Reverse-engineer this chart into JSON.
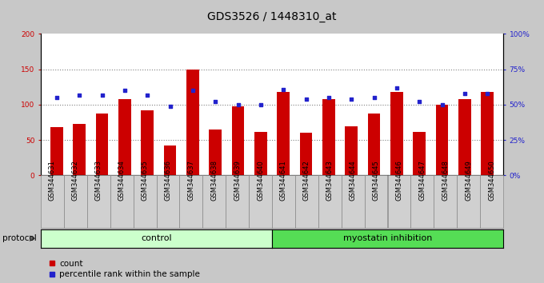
{
  "title": "GDS3526 / 1448310_at",
  "samples": [
    "GSM344631",
    "GSM344632",
    "GSM344633",
    "GSM344634",
    "GSM344635",
    "GSM344636",
    "GSM344637",
    "GSM344638",
    "GSM344639",
    "GSM344640",
    "GSM344641",
    "GSM344642",
    "GSM344643",
    "GSM344644",
    "GSM344645",
    "GSM344646",
    "GSM344647",
    "GSM344648",
    "GSM344649",
    "GSM344650"
  ],
  "bar_values": [
    68,
    73,
    88,
    108,
    92,
    42,
    150,
    65,
    98,
    62,
    118,
    60,
    108,
    70,
    88,
    118,
    62,
    100,
    108,
    118
  ],
  "dot_values": [
    55,
    57,
    57,
    60,
    57,
    49,
    60,
    52,
    50,
    50,
    61,
    54,
    55,
    54,
    55,
    62,
    52,
    50,
    58,
    58
  ],
  "bar_color": "#cc0000",
  "dot_color": "#2222cc",
  "control_color": "#ccffcc",
  "myostatin_color": "#55dd55",
  "bg_color": "#c8c8c8",
  "plot_bg_color": "#ffffff",
  "xticklabel_bg": "#d0d0d0",
  "ylim_left": [
    0,
    200
  ],
  "ylim_right": [
    0,
    100
  ],
  "yticks_left": [
    0,
    50,
    100,
    150,
    200
  ],
  "ytick_labels_left": [
    "0",
    "50",
    "100",
    "150",
    "200"
  ],
  "ytick_labels_right": [
    "0%",
    "25%",
    "50%",
    "75%",
    "100%"
  ],
  "grid_ticks": [
    50,
    100,
    150
  ],
  "legend_count_label": "count",
  "legend_pct_label": "percentile rank within the sample",
  "protocol_label": "protocol",
  "control_label": "control",
  "myostatin_label": "myostatin inhibition",
  "n_control": 10,
  "n_total": 20,
  "title_fontsize": 10,
  "tick_fontsize": 6.5,
  "label_fontsize": 7.5,
  "group_label_fontsize": 8
}
